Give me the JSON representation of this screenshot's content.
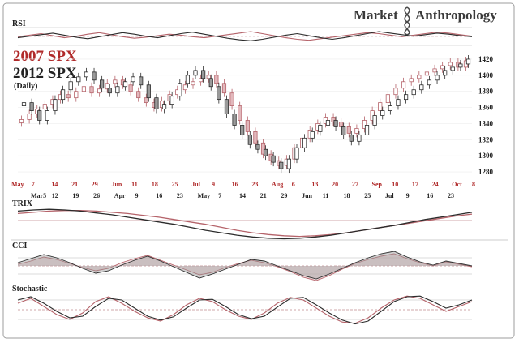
{
  "header": {
    "brand_left": "Market",
    "brand_right": "Anthropology"
  },
  "legend": {
    "line1": "2007 SPX",
    "line2": "2012 SPX",
    "line3": "(Daily)"
  },
  "colors": {
    "spx2007": "#b5636a",
    "spx2007_fill": "#e2b8bc",
    "spx2012": "#2b2b2b",
    "spx2012_fill": "#9a9a9a",
    "grid": "#cfcfcf",
    "level_line": "#c08a8f",
    "frame": "#9c9c9c"
  },
  "chart_data": [
    {
      "type": "line",
      "title": "RSI",
      "series": [
        {
          "name": "2007 SPX",
          "values": [
            52,
            55,
            58,
            54,
            50,
            53,
            57,
            60,
            56,
            52,
            49,
            51,
            54,
            57,
            55,
            52,
            50,
            53,
            56,
            59,
            62,
            58,
            54,
            50,
            47,
            45,
            48,
            51,
            54,
            57,
            60,
            58,
            55,
            52,
            55,
            58,
            61,
            59,
            56,
            53
          ]
        },
        {
          "name": "2012 SPX",
          "values": [
            50,
            53,
            56,
            59,
            55,
            51,
            48,
            52,
            56,
            60,
            57,
            53,
            50,
            54,
            58,
            61,
            57,
            53,
            49,
            46,
            44,
            47,
            51,
            55,
            58,
            54,
            50,
            47,
            50,
            54,
            58,
            62,
            59,
            56,
            53,
            56,
            59,
            57,
            54,
            52
          ]
        }
      ]
    },
    {
      "type": "candlestick",
      "ylim": [
        1270,
        1425
      ],
      "yticks": [
        1280,
        1300,
        1320,
        1340,
        1360,
        1380,
        1400,
        1420
      ],
      "x_ticks_2007": [
        "May",
        "7",
        "14",
        "21",
        "29",
        "Jun",
        "11",
        "18",
        "25",
        "Jul",
        "9",
        "16",
        "23",
        "Aug",
        "6",
        "13",
        "20",
        "27",
        "Sep",
        "10",
        "17",
        "24",
        "Oct",
        "8"
      ],
      "x_ticks_2012": [
        "Mar5",
        "12",
        "19",
        "26",
        "Apr",
        "9",
        "16",
        "23",
        "May",
        "7",
        "14",
        "21",
        "29",
        "Jun",
        "11",
        "18",
        "25",
        "Jul",
        "9",
        "16",
        "23"
      ],
      "series": [
        {
          "name": "2007 SPX",
          "close": [
            1345,
            1352,
            1358,
            1364,
            1370,
            1376,
            1372,
            1380,
            1386,
            1378,
            1383,
            1390,
            1394,
            1388,
            1380,
            1372,
            1366,
            1360,
            1368,
            1376,
            1382,
            1388,
            1392,
            1396,
            1400,
            1390,
            1378,
            1362,
            1344,
            1330,
            1316,
            1302,
            1294,
            1288,
            1296,
            1310,
            1322,
            1332,
            1340,
            1348,
            1342,
            1336,
            1328,
            1334,
            1344,
            1356,
            1366,
            1376,
            1384,
            1392,
            1396,
            1400,
            1404,
            1408,
            1412,
            1416,
            1410,
            1418
          ]
        },
        {
          "name": "2012 SPX",
          "close": [
            1366,
            1356,
            1344,
            1356,
            1370,
            1382,
            1392,
            1398,
            1404,
            1394,
            1384,
            1378,
            1386,
            1392,
            1398,
            1388,
            1372,
            1358,
            1364,
            1374,
            1390,
            1400,
            1406,
            1396,
            1386,
            1370,
            1352,
            1338,
            1326,
            1314,
            1308,
            1300,
            1292,
            1284,
            1296,
            1310,
            1322,
            1330,
            1338,
            1344,
            1336,
            1326,
            1318,
            1326,
            1338,
            1350,
            1356,
            1362,
            1370,
            1376,
            1382,
            1388,
            1394,
            1400,
            1406,
            1410,
            1414,
            1420
          ]
        }
      ]
    },
    {
      "type": "line",
      "title": "TRIX",
      "series": [
        {
          "name": "2007 SPX",
          "values": [
            0.2,
            0.22,
            0.24,
            0.25,
            0.25,
            0.24,
            0.22,
            0.2,
            0.17,
            0.14,
            0.1,
            0.06,
            0.02,
            -0.03,
            -0.08,
            -0.12,
            -0.15,
            -0.17,
            -0.18,
            -0.17,
            -0.15,
            -0.12,
            -0.08,
            -0.04,
            0.0,
            0.04,
            0.08,
            0.12,
            0.16,
            0.19
          ]
        },
        {
          "name": "2012 SPX",
          "values": [
            0.24,
            0.26,
            0.27,
            0.26,
            0.24,
            0.21,
            0.18,
            0.14,
            0.1,
            0.06,
            0.02,
            -0.03,
            -0.08,
            -0.12,
            -0.16,
            -0.19,
            -0.21,
            -0.22,
            -0.21,
            -0.19,
            -0.16,
            -0.12,
            -0.08,
            -0.04,
            0.0,
            0.05,
            0.1,
            0.14,
            0.18,
            0.22
          ]
        }
      ]
    },
    {
      "type": "area",
      "title": "CCI",
      "series": [
        {
          "name": "2007 SPX",
          "values": [
            20,
            60,
            110,
            80,
            30,
            -20,
            -60,
            -30,
            40,
            90,
            130,
            70,
            10,
            -50,
            -110,
            -80,
            -20,
            30,
            70,
            40,
            -10,
            -70,
            -140,
            -180,
            -120,
            -40,
            30,
            80,
            120,
            150,
            90,
            40,
            0,
            50,
            20,
            -10
          ]
        },
        {
          "name": "2012 SPX",
          "values": [
            40,
            90,
            140,
            100,
            40,
            -30,
            -90,
            -60,
            10,
            70,
            120,
            60,
            -10,
            -80,
            -150,
            -100,
            -40,
            20,
            80,
            60,
            0,
            -60,
            -120,
            -160,
            -100,
            -30,
            40,
            100,
            150,
            180,
            110,
            50,
            10,
            60,
            30,
            0
          ]
        }
      ]
    },
    {
      "type": "line",
      "title": "Stochastic",
      "series": [
        {
          "name": "2007 SPX",
          "values": [
            70,
            85,
            60,
            35,
            20,
            40,
            75,
            90,
            70,
            45,
            25,
            15,
            35,
            65,
            85,
            75,
            50,
            30,
            20,
            40,
            70,
            88,
            80,
            55,
            30,
            12,
            8,
            25,
            55,
            80,
            92,
            85,
            65,
            45,
            60,
            75
          ]
        },
        {
          "name": "2012 SPX",
          "values": [
            80,
            90,
            70,
            45,
            25,
            30,
            60,
            85,
            80,
            55,
            30,
            18,
            28,
            55,
            80,
            82,
            60,
            35,
            22,
            30,
            58,
            85,
            88,
            65,
            40,
            18,
            6,
            15,
            45,
            75,
            90,
            92,
            75,
            55,
            65,
            80
          ]
        }
      ]
    }
  ]
}
